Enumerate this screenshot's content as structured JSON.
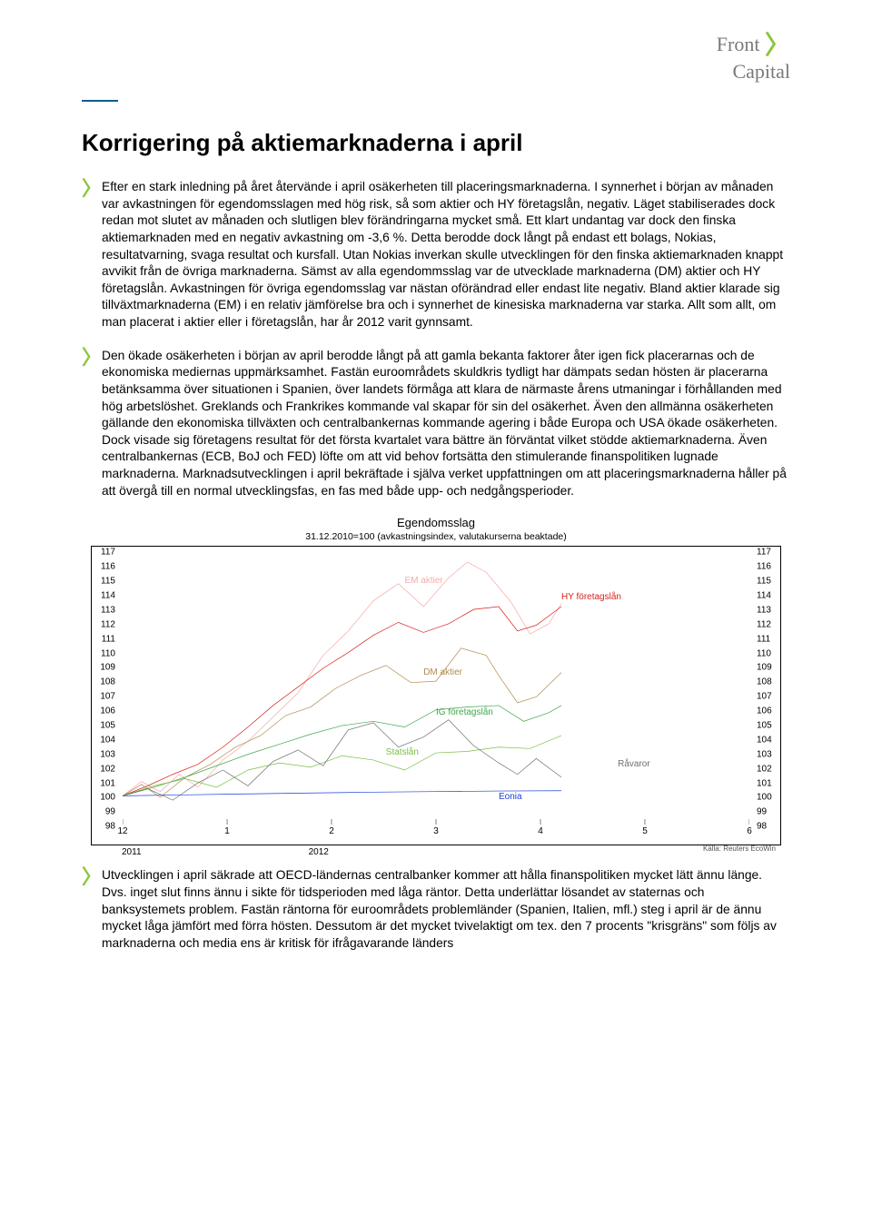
{
  "logo": {
    "line1_a": "Front",
    "line1_b": "Capital"
  },
  "title": "Korrigering på aktiemarknaderna i april",
  "paragraphs": [
    "Efter en stark inledning på året återvände i april osäkerheten till placeringsmarknaderna. I synnerhet i början av månaden var avkastningen för egendomsslagen med hög risk, så som aktier och HY företagslån, negativ. Läget stabiliserades dock redan mot slutet av månaden och slutligen blev förändringarna mycket små. Ett klart undantag var dock den finska aktiemarknaden med en negativ avkastning om -3,6 %. Detta berodde dock långt på endast ett bolags, Nokias, resultatvarning, svaga resultat och kursfall. Utan Nokias inverkan skulle utvecklingen för den finska aktiemarknaden knappt avvikit från de övriga marknaderna. Sämst av alla egendommsslag var de utvecklade marknaderna (DM) aktier och HY företagslån. Avkastningen för övriga egendomsslag var nästan oförändrad eller endast lite negativ. Bland aktier klarade sig tillväxtmarknaderna (EM) i en relativ jämförelse bra och i synnerhet de kinesiska marknaderna var starka. Allt som allt, om man placerat i aktier eller i företagslån, har år 2012 varit gynnsamt.",
    "Den ökade osäkerheten i början av april berodde långt på att gamla bekanta faktorer åter igen fick placerarnas och de ekonomiska mediernas uppmärksamhet. Fastän euroområdets skuldkris tydligt har dämpats sedan hösten är placerarna betänksamma över situationen i Spanien, över landets förmåga att klara de närmaste årens utmaningar i förhållanden med hög arbetslöshet. Greklands och Frankrikes kommande val skapar för sin del osäkerhet. Även den allmänna osäkerheten gällande den ekonomiska tillväxten och centralbankernas kommande agering i både Europa och USA ökade osäkerheten. Dock visade sig företagens resultat för det första kvartalet vara bättre än förväntat vilket stödde aktiemarknaderna. Även centralbankernas (ECB, BoJ och FED) löfte om att vid behov fortsätta den stimulerande finanspolitiken lugnade marknaderna. Marknadsutvecklingen i april bekräftade i själva verket uppfattningen om att placeringsmarknaderna håller på att övergå till en normal utvecklingsfas, en fas med både upp- och nedgångsperioder.",
    "Utvecklingen i april säkrade att OECD-ländernas centralbanker kommer att hålla finanspolitiken mycket lätt ännu länge. Dvs. inget slut finns ännu i sikte för tidsperioden med låga räntor. Detta underlättar lösandet av staternas och banksystemets problem. Fastän räntorna för euroområdets problemländer (Spanien, Italien, mfl.) steg i april är de ännu mycket låga jämfört med förra hösten. Dessutom är det mycket tvivelaktigt om tex. den 7 procents \"krisgräns\" som följs av marknaderna och media ens är kritisk för ifrågavarande länders"
  ],
  "chart": {
    "title": "Egendomsslag",
    "subtitle": "31.12.2010=100   (avkastningsindex, valutakurserna beaktade)",
    "ylim": [
      98,
      117
    ],
    "yticks": [
      98,
      99,
      100,
      101,
      102,
      103,
      104,
      105,
      106,
      107,
      108,
      109,
      110,
      111,
      112,
      113,
      114,
      115,
      116,
      117
    ],
    "x_months": [
      "12",
      "1",
      "2",
      "3",
      "4",
      "5",
      "6"
    ],
    "x_years_left": "2011",
    "x_years_right": "2012",
    "x_year_right_pos": 0.5,
    "source": "Källa: Reuters EcoWin",
    "background_color": "#ffffff",
    "border_color": "#000000",
    "series": [
      {
        "name": "EM aktier",
        "color": "#f4aaaa",
        "label_x": 0.45,
        "label_y": 115.4,
        "points": [
          [
            0,
            100
          ],
          [
            0.03,
            101
          ],
          [
            0.06,
            100.3
          ],
          [
            0.09,
            101.5
          ],
          [
            0.12,
            100.6
          ],
          [
            0.16,
            102.5
          ],
          [
            0.2,
            103.8
          ],
          [
            0.24,
            105.5
          ],
          [
            0.28,
            107.2
          ],
          [
            0.32,
            109.8
          ],
          [
            0.36,
            111.5
          ],
          [
            0.4,
            113.6
          ],
          [
            0.44,
            114.8
          ],
          [
            0.48,
            113.2
          ],
          [
            0.52,
            115.2
          ],
          [
            0.55,
            116.3
          ],
          [
            0.58,
            115.6
          ],
          [
            0.62,
            113.5
          ],
          [
            0.65,
            111.3
          ],
          [
            0.68,
            112.0
          ],
          [
            0.7,
            113.4
          ]
        ]
      },
      {
        "name": "HY företagslån",
        "color": "#d9201b",
        "label_x": 0.7,
        "label_y": 114.2,
        "points": [
          [
            0,
            100
          ],
          [
            0.04,
            100.7
          ],
          [
            0.08,
            101.5
          ],
          [
            0.12,
            102.2
          ],
          [
            0.16,
            103.4
          ],
          [
            0.2,
            104.8
          ],
          [
            0.24,
            106.3
          ],
          [
            0.28,
            107.6
          ],
          [
            0.32,
            108.9
          ],
          [
            0.36,
            110.0
          ],
          [
            0.4,
            111.2
          ],
          [
            0.44,
            112.1
          ],
          [
            0.48,
            111.4
          ],
          [
            0.52,
            112.0
          ],
          [
            0.56,
            113.0
          ],
          [
            0.6,
            113.2
          ],
          [
            0.63,
            111.5
          ],
          [
            0.66,
            111.9
          ],
          [
            0.7,
            113.2
          ]
        ]
      },
      {
        "name": "DM aktier",
        "color": "#b08b4f",
        "label_x": 0.48,
        "label_y": 109,
        "points": [
          [
            0,
            100
          ],
          [
            0.03,
            100.8
          ],
          [
            0.06,
            99.9
          ],
          [
            0.1,
            101.3
          ],
          [
            0.14,
            102.2
          ],
          [
            0.18,
            103.4
          ],
          [
            0.22,
            104.2
          ],
          [
            0.26,
            105.6
          ],
          [
            0.3,
            106.2
          ],
          [
            0.34,
            107.5
          ],
          [
            0.38,
            108.4
          ],
          [
            0.42,
            109.1
          ],
          [
            0.46,
            107.9
          ],
          [
            0.5,
            108.0
          ],
          [
            0.54,
            110.3
          ],
          [
            0.58,
            109.8
          ],
          [
            0.6,
            108.4
          ],
          [
            0.63,
            106.5
          ],
          [
            0.66,
            106.9
          ],
          [
            0.7,
            108.6
          ]
        ]
      },
      {
        "name": "IG företagslån",
        "color": "#3fa64a",
        "label_x": 0.5,
        "label_y": 106.2,
        "points": [
          [
            0,
            100
          ],
          [
            0.05,
            100.6
          ],
          [
            0.1,
            101.3
          ],
          [
            0.15,
            102.1
          ],
          [
            0.2,
            102.9
          ],
          [
            0.25,
            103.6
          ],
          [
            0.3,
            104.3
          ],
          [
            0.35,
            104.9
          ],
          [
            0.4,
            105.2
          ],
          [
            0.45,
            104.8
          ],
          [
            0.5,
            106.0
          ],
          [
            0.55,
            106.2
          ],
          [
            0.6,
            106.3
          ],
          [
            0.64,
            105.2
          ],
          [
            0.68,
            105.8
          ],
          [
            0.7,
            106.3
          ]
        ]
      },
      {
        "name": "Statslån",
        "color": "#7abf44",
        "label_x": 0.42,
        "label_y": 103.4,
        "points": [
          [
            0,
            100
          ],
          [
            0.05,
            100.7
          ],
          [
            0.1,
            101.2
          ],
          [
            0.15,
            100.6
          ],
          [
            0.2,
            101.8
          ],
          [
            0.25,
            102.3
          ],
          [
            0.3,
            102.0
          ],
          [
            0.35,
            102.8
          ],
          [
            0.4,
            102.5
          ],
          [
            0.45,
            101.8
          ],
          [
            0.5,
            103.0
          ],
          [
            0.55,
            103.1
          ],
          [
            0.6,
            103.4
          ],
          [
            0.65,
            103.3
          ],
          [
            0.7,
            104.2
          ]
        ]
      },
      {
        "name": "Råvaror",
        "color": "#6f6f6f",
        "label_x": 0.79,
        "label_y": 102.6,
        "points": [
          [
            0,
            100
          ],
          [
            0.04,
            100.5
          ],
          [
            0.08,
            99.7
          ],
          [
            0.12,
            100.9
          ],
          [
            0.16,
            101.8
          ],
          [
            0.2,
            100.7
          ],
          [
            0.24,
            102.4
          ],
          [
            0.28,
            103.2
          ],
          [
            0.32,
            102.1
          ],
          [
            0.36,
            104.6
          ],
          [
            0.4,
            105.1
          ],
          [
            0.44,
            103.4
          ],
          [
            0.48,
            104.1
          ],
          [
            0.52,
            105.3
          ],
          [
            0.56,
            103.5
          ],
          [
            0.6,
            102.3
          ],
          [
            0.63,
            101.5
          ],
          [
            0.66,
            102.6
          ],
          [
            0.7,
            101.3
          ]
        ]
      },
      {
        "name": "Eonia",
        "color": "#1b3fdb",
        "label_x": 0.6,
        "label_y": 100.3,
        "points": [
          [
            0,
            100
          ],
          [
            0.1,
            100.07
          ],
          [
            0.2,
            100.14
          ],
          [
            0.3,
            100.2
          ],
          [
            0.4,
            100.26
          ],
          [
            0.5,
            100.3
          ],
          [
            0.6,
            100.34
          ],
          [
            0.7,
            100.36
          ]
        ]
      }
    ]
  }
}
